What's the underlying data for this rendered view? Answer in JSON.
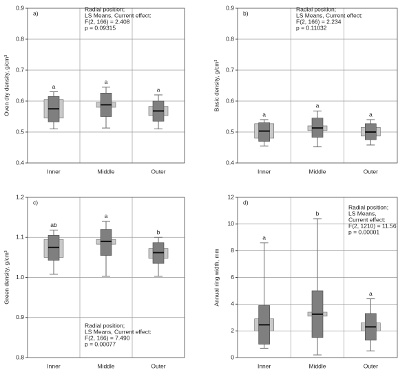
{
  "chart_data": [
    {
      "type": "box",
      "label": "a)",
      "ylabel": "Oven dry density, g/cm³",
      "annotation": [
        "Radial position;",
        "LS Means, Current effect:",
        "F(2, 166) = 2.408",
        "p = 0.09315"
      ],
      "categories": [
        "Inner",
        "Middle",
        "Outer"
      ],
      "letters": [
        "a",
        "a",
        "a"
      ],
      "boxes": [
        {
          "min": 0.51,
          "q1": 0.533,
          "median": 0.575,
          "q3": 0.615,
          "max": 0.63
        },
        {
          "min": 0.513,
          "q1": 0.55,
          "median": 0.588,
          "q3": 0.626,
          "max": 0.645
        },
        {
          "min": 0.51,
          "q1": 0.535,
          "median": 0.568,
          "q3": 0.6,
          "max": 0.62
        }
      ],
      "light_boxes": [
        [
          0.545,
          0.605
        ],
        [
          0.58,
          0.596
        ],
        [
          0.553,
          0.583
        ]
      ],
      "box_color": "#7f7f7f",
      "light_color": "#c9c9c9",
      "ylim": [
        0.4,
        0.9
      ],
      "yticks": [
        0.4,
        0.5,
        0.6,
        0.7,
        0.8,
        0.9
      ],
      "grid": true
    },
    {
      "type": "box",
      "label": "b)",
      "ylabel": "Basic density, g/cm³",
      "annotation": [
        "Radial position;",
        "LS Means, Current effect:",
        "F(2, 166) = 2.234",
        "p = 0.11032"
      ],
      "categories": [
        "Inner",
        "Middle",
        "Outer"
      ],
      "letters": [
        "a",
        "a",
        "a"
      ],
      "boxes": [
        {
          "min": 0.455,
          "q1": 0.47,
          "median": 0.503,
          "q3": 0.53,
          "max": 0.54
        },
        {
          "min": 0.452,
          "q1": 0.483,
          "median": 0.513,
          "q3": 0.545,
          "max": 0.568
        },
        {
          "min": 0.458,
          "q1": 0.475,
          "median": 0.5,
          "q3": 0.527,
          "max": 0.54
        }
      ],
      "light_boxes": [
        [
          0.48,
          0.527
        ],
        [
          0.505,
          0.52
        ],
        [
          0.487,
          0.515
        ]
      ],
      "box_color": "#7f7f7f",
      "light_color": "#c9c9c9",
      "ylim": [
        0.4,
        0.9
      ],
      "yticks": [
        0.4,
        0.5,
        0.6,
        0.7,
        0.8,
        0.9
      ],
      "grid": true
    },
    {
      "type": "box",
      "label": "c)",
      "ylabel": "Green density, g/cm³",
      "annotation": [
        "Radial position;",
        "LS Means, Current effect:",
        "F(2, 166) = 7.490",
        "p = 0.00077"
      ],
      "categories": [
        "Inner",
        "Middle",
        "Outer"
      ],
      "letters": [
        "ab",
        "a",
        "b"
      ],
      "boxes": [
        {
          "min": 1.008,
          "q1": 1.043,
          "median": 1.075,
          "q3": 1.105,
          "max": 1.118
        },
        {
          "min": 1.003,
          "q1": 1.055,
          "median": 1.09,
          "q3": 1.12,
          "max": 1.14
        },
        {
          "min": 1.003,
          "q1": 1.035,
          "median": 1.062,
          "q3": 1.087,
          "max": 1.1
        }
      ],
      "light_boxes": [
        [
          1.05,
          1.095
        ],
        [
          1.083,
          1.095
        ],
        [
          1.048,
          1.072
        ]
      ],
      "box_color": "#7f7f7f",
      "light_color": "#c9c9c9",
      "ylim": [
        0.8,
        1.2
      ],
      "yticks": [
        0.8,
        0.9,
        {
          "value": 1,
          "label": "1.0"
        },
        1.1,
        1.2
      ],
      "grid": true
    },
    {
      "type": "box",
      "label": "d)",
      "ylabel": "Annual ring width, mm",
      "annotation": [
        "Radial position;",
        "LS Means,",
        "Current effect:",
        "F(2, 1210) = 11.56",
        "p = 0.00001"
      ],
      "categories": [
        "Inner",
        "Middle",
        "Outer"
      ],
      "letters": [
        "a",
        "b",
        "a"
      ],
      "boxes": [
        {
          "min": 0.7,
          "q1": 1.0,
          "median": 2.45,
          "q3": 3.9,
          "max": 8.6
        },
        {
          "min": 0.2,
          "q1": 1.5,
          "median": 3.25,
          "q3": 5.0,
          "max": 10.4
        },
        {
          "min": 0.5,
          "q1": 1.3,
          "median": 2.3,
          "q3": 3.3,
          "max": 4.4
        }
      ],
      "light_boxes": [
        [
          2.0,
          2.9
        ],
        [
          3.1,
          3.4
        ],
        [
          2.0,
          2.6
        ]
      ],
      "box_color": "#7f7f7f",
      "light_color": "#c9c9c9",
      "ylim": [
        0,
        12
      ],
      "yticks": [
        0,
        2,
        4,
        6,
        8,
        10,
        12
      ],
      "grid": true
    }
  ]
}
